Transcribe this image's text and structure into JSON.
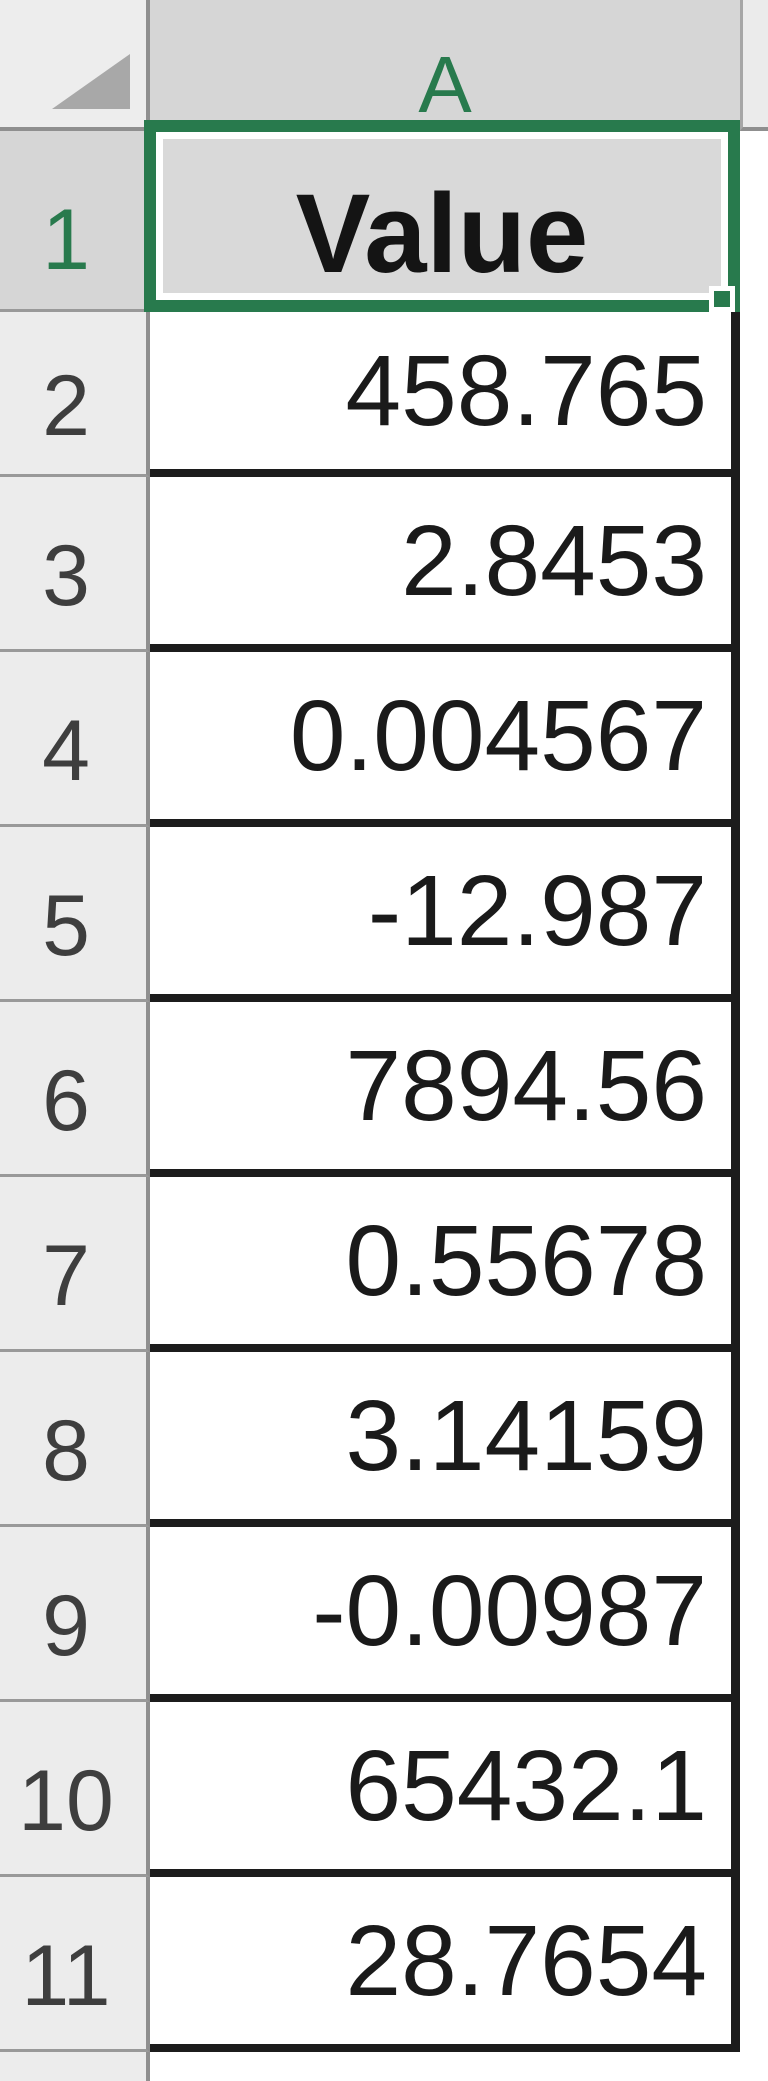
{
  "sheet": {
    "column_header": "A",
    "selected_cell": "A1",
    "rows": [
      {
        "num": "1",
        "value": "Value"
      },
      {
        "num": "2",
        "value": "458.765"
      },
      {
        "num": "3",
        "value": "2.8453"
      },
      {
        "num": "4",
        "value": "0.004567"
      },
      {
        "num": "5",
        "value": "-12.987"
      },
      {
        "num": "6",
        "value": "7894.56"
      },
      {
        "num": "7",
        "value": "0.55678"
      },
      {
        "num": "8",
        "value": "3.14159"
      },
      {
        "num": "9",
        "value": "-0.00987"
      },
      {
        "num": "10",
        "value": "65432.1"
      },
      {
        "num": "11",
        "value": "28.7654"
      }
    ]
  },
  "icons": {
    "select_all_triangle": "corner-triangle"
  },
  "colors": {
    "selection_green": "#287A4D",
    "header_fill": "#ECECEC",
    "selected_header_fill": "#D6D6D6",
    "selected_cell_fill": "#D9D9D9",
    "cell_border_black": "#1C1C1C",
    "header_line_gray": "#8F8F8F",
    "cell_background": "#FFFFFF"
  }
}
